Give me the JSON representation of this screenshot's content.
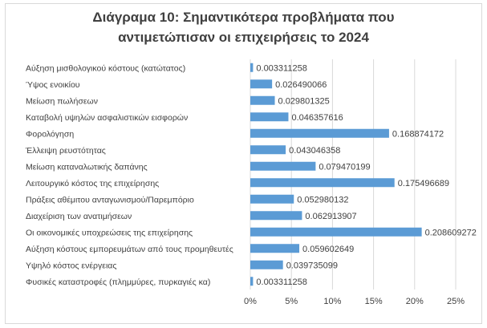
{
  "chart_data": {
    "type": "bar",
    "orientation": "horizontal",
    "title_lines": [
      "Διάγραμα 10: Σημαντικότερα προβλήματα που",
      "αντιμετώπισαν οι επιχειρήσεις το 2024"
    ],
    "categories": [
      "Αύξηση μισθολογικού κόστους (κατώτατος)",
      "Ύψος ενοικίου",
      "Μείωση πωλήσεων",
      "Καταβολή υψηλών ασφαλιστικών εισφορών",
      "Φορολόγηση",
      "Έλλειψη ρευστότητας",
      "Μείωση καταναλωτικής δαπάνης",
      "Λειτουργικό κόστος της επιχείρησης",
      "Πράξεις αθέμιτου ανταγωνισμού/Παρεμπόριο",
      "Διαχείριση των ανατιμήσεων",
      "Οι οικονομικές υποχρεώσεις της επιχείρησης",
      "Αύξηση κόστους εμπορευμάτων από τους προμηθευτές",
      "Υψηλό κόστος ενέργειας",
      "Φυσικές καταστροφές (πλημμύρες, πυρκαγιές κα)"
    ],
    "values": [
      0.003311258,
      0.026490066,
      0.029801325,
      0.046357616,
      0.168874172,
      0.043046358,
      0.079470199,
      0.175496689,
      0.052980132,
      0.062913907,
      0.208609272,
      0.059602649,
      0.039735099,
      0.003311258
    ],
    "data_labels": [
      [
        "0.003311",
        "258"
      ],
      [
        "0.026490",
        "066"
      ],
      [
        "0.029801",
        "325"
      ],
      [
        "0.046357",
        "616"
      ],
      [
        "0.168874",
        "172"
      ],
      [
        "0.043046",
        "358"
      ],
      [
        "0.079470",
        "199"
      ],
      [
        "0.175496",
        "689"
      ],
      [
        "0.052980",
        "132"
      ],
      [
        "0.062913",
        "907"
      ],
      [
        "0.208609",
        "272"
      ],
      [
        "0.059602",
        "649"
      ],
      [
        "0.039735",
        "099"
      ],
      [
        "0.003311",
        "258"
      ]
    ],
    "x_ticks": [
      "0%",
      "5%",
      "10%",
      "15%",
      "20%",
      "25%"
    ],
    "xlim": [
      0,
      0.25
    ],
    "grid": true,
    "bar_color": "#5b9bd5",
    "legend": "none"
  }
}
